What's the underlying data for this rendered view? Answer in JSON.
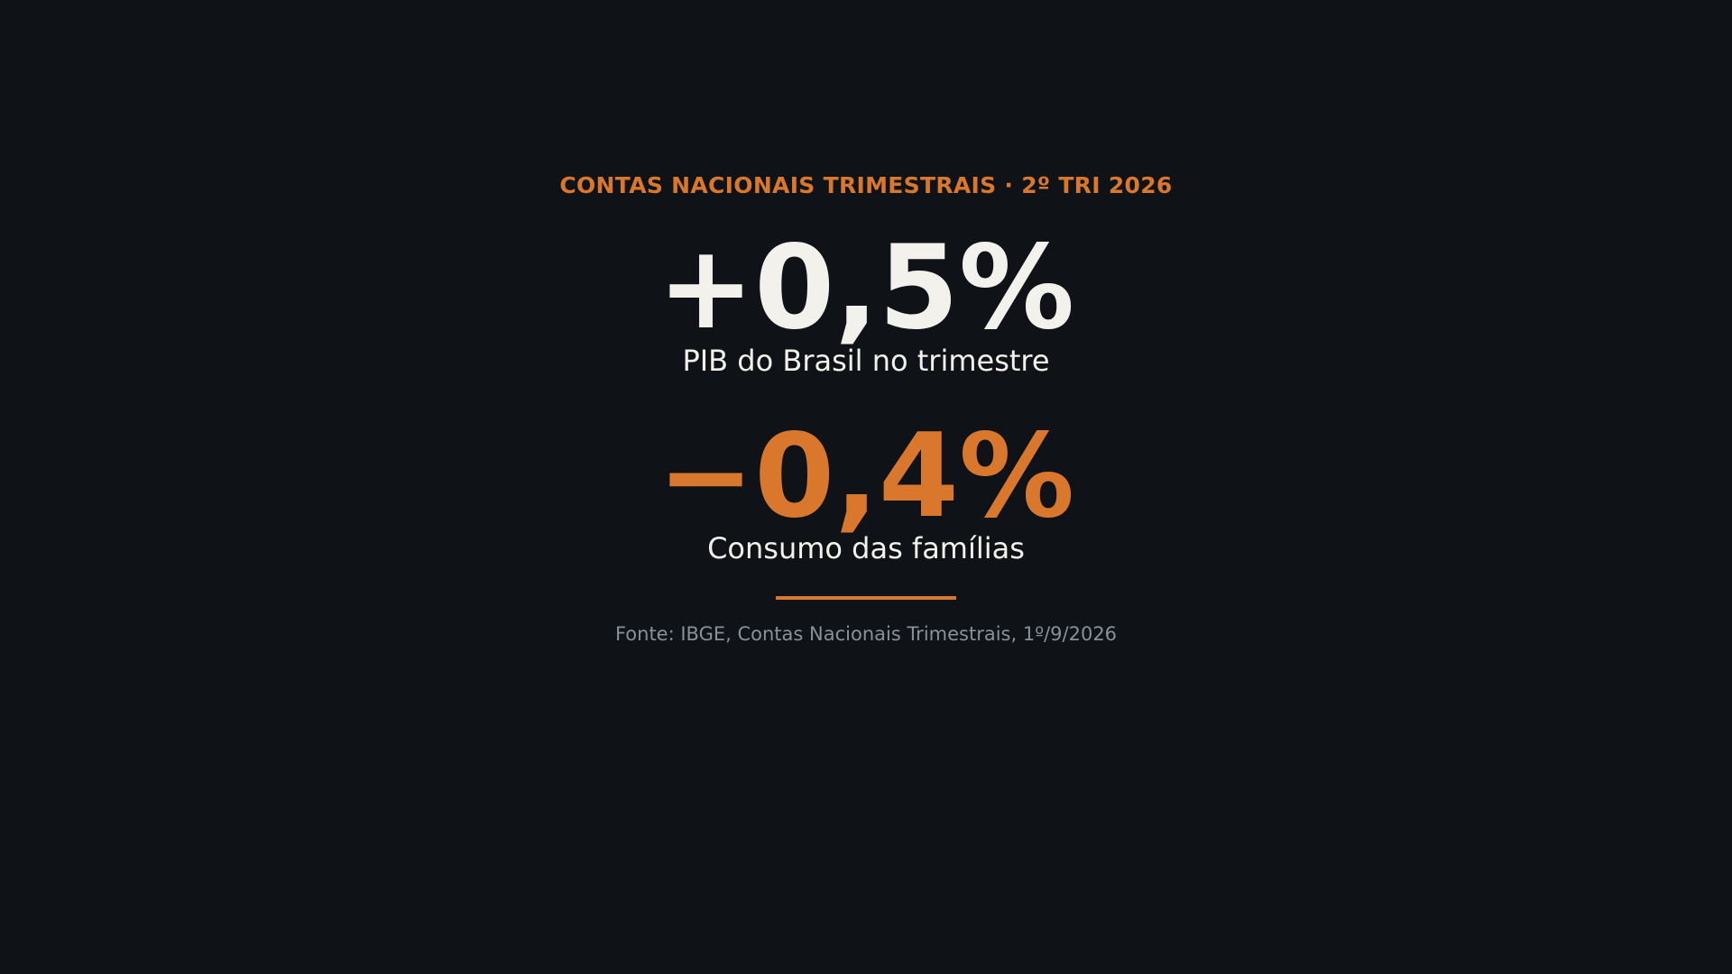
{
  "header": {
    "title": "CONTAS NACIONAIS TRIMESTRAIS · 2º TRI 2026"
  },
  "stats": [
    {
      "value": "+0,5%",
      "label": "PIB do Brasil no trimestre"
    },
    {
      "value": "−0,4%",
      "label": "Consumo das famílias"
    }
  ],
  "footer": {
    "source": "Fonte: IBGE, Contas Nacionais Trimestrais, 1º/9/2026"
  }
}
